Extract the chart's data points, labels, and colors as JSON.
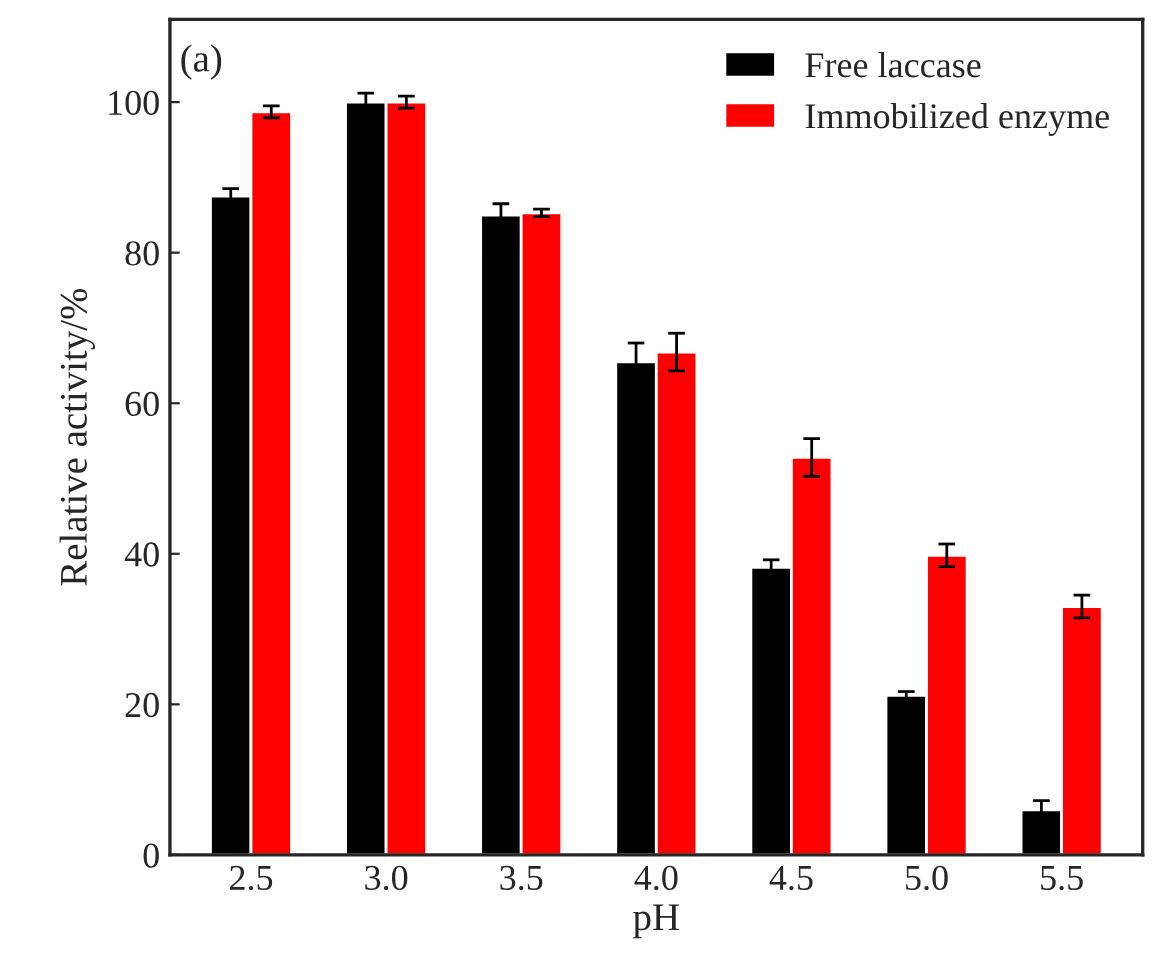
{
  "chart_data": {
    "type": "bar",
    "xlabel": "pH",
    "ylabel": "Relative activity/%",
    "annotations": [
      "(a)"
    ],
    "categories": [
      "2.5",
      "3.0",
      "3.5",
      "4.0",
      "4.5",
      "5.0",
      "5.5"
    ],
    "series": [
      {
        "name": "Free laccase",
        "color": "#000000",
        "values": [
          87.5,
          100,
          85,
          65.5,
          38.2,
          21.2,
          6
        ],
        "errors": [
          1,
          1.2,
          1.5,
          2.5,
          1,
          0.5,
          1.2
        ]
      },
      {
        "name": "Immobilized enzyme",
        "color": "#ff0000",
        "values": [
          98.7,
          100,
          85.3,
          66.8,
          52.8,
          39.8,
          33
        ],
        "errors": [
          0.8,
          0.8,
          0.5,
          2.5,
          2.5,
          1.5,
          1.5
        ]
      }
    ],
    "ylim": [
      0,
      111
    ],
    "yticks": [
      0,
      20,
      40,
      60,
      80,
      100
    ],
    "legend": "top right",
    "grid": false
  }
}
